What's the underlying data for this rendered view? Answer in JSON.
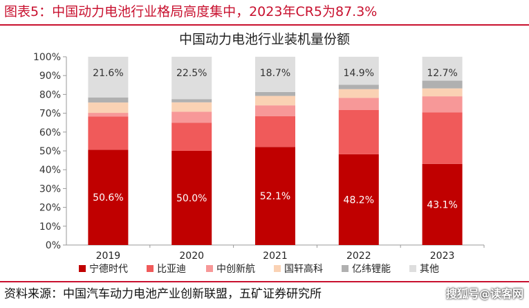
{
  "header": {
    "title": "图表5：中国动力电池行业格局高度集中，2023年CR5为87.3%"
  },
  "footer": {
    "source": "资料来源：中国汽车动力电池产业创新联盟，五矿证券研究所",
    "watermark": "搜狐号@读客网"
  },
  "colors": {
    "brand": "#c8102e",
    "series": [
      "#c00000",
      "#f05a5a",
      "#f79898",
      "#fad2b4",
      "#b0b0b0",
      "#dedede"
    ],
    "data_label_light": "#ffffff",
    "data_label_dark": "#333333"
  },
  "chart_data": {
    "type": "bar",
    "stacked": true,
    "title": "中国动力电池行业装机量份额",
    "categories": [
      "2019",
      "2020",
      "2021",
      "2022",
      "2023"
    ],
    "ylim": [
      0,
      100
    ],
    "yticks": [
      "0%",
      "10%",
      "20%",
      "30%",
      "40%",
      "50%",
      "60%",
      "70%",
      "80%",
      "90%",
      "100%"
    ],
    "xlabel": "",
    "ylabel": "",
    "grid": false,
    "legend_position": "bottom",
    "series": [
      {
        "name": "宁德时代",
        "values": [
          50.6,
          50.0,
          52.1,
          48.2,
          43.1
        ]
      },
      {
        "name": "比亚迪",
        "values": [
          17.6,
          15.0,
          16.3,
          23.6,
          27.3
        ]
      },
      {
        "name": "中创新航",
        "values": [
          2.0,
          5.8,
          5.8,
          6.4,
          8.6
        ]
      },
      {
        "name": "国轩高科",
        "values": [
          5.5,
          5.0,
          5.0,
          4.6,
          4.2
        ]
      },
      {
        "name": "亿纬锂能",
        "values": [
          2.7,
          1.7,
          2.1,
          2.3,
          4.1
        ]
      },
      {
        "name": "其他",
        "values": [
          21.6,
          22.5,
          18.7,
          14.9,
          12.7
        ]
      }
    ],
    "data_labels": {
      "宁德时代": [
        "50.6%",
        "50.0%",
        "52.1%",
        "48.2%",
        "43.1%"
      ],
      "其他": [
        "21.6%",
        "22.5%",
        "18.7%",
        "14.9%",
        "12.7%"
      ]
    }
  }
}
